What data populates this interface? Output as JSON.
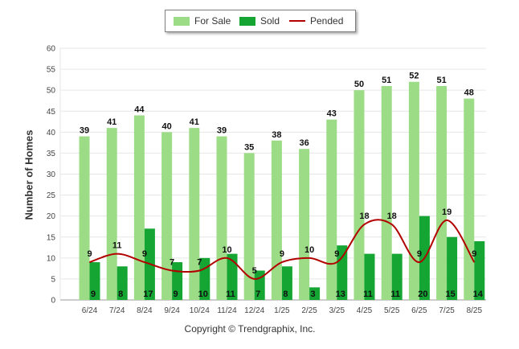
{
  "legend": {
    "for_sale": "For Sale",
    "sold": "Sold",
    "pended": "Pended"
  },
  "colors": {
    "for_sale": "#9ddc86",
    "sold": "#14a532",
    "pended": "#b20000",
    "grid": "#e6e6e6"
  },
  "copyright": "Copyright © Trendgraphix, Inc.",
  "chart_data": {
    "type": "bar",
    "title": "",
    "xlabel": "",
    "ylabel": "Number of Homes",
    "ylim": [
      0,
      60
    ],
    "yticks": [
      0,
      5,
      10,
      15,
      20,
      25,
      30,
      35,
      40,
      45,
      50,
      55,
      60
    ],
    "grid": true,
    "legend_position": "top-center",
    "categories": [
      "6/24",
      "7/24",
      "8/24",
      "9/24",
      "10/24",
      "11/24",
      "12/24",
      "1/25",
      "2/25",
      "3/25",
      "4/25",
      "5/25",
      "6/25",
      "7/25",
      "8/25"
    ],
    "series": [
      {
        "name": "For Sale",
        "kind": "bar",
        "values": [
          39,
          41,
          44,
          40,
          41,
          39,
          35,
          38,
          36,
          43,
          50,
          51,
          52,
          51,
          48
        ]
      },
      {
        "name": "Sold",
        "kind": "bar",
        "values": [
          9,
          8,
          17,
          9,
          10,
          11,
          7,
          8,
          3,
          13,
          11,
          11,
          20,
          15,
          14
        ]
      },
      {
        "name": "Pended",
        "kind": "line",
        "values": [
          9,
          11,
          9,
          7,
          7,
          10,
          5,
          9,
          10,
          9,
          18,
          18,
          9,
          19,
          9
        ]
      }
    ]
  }
}
